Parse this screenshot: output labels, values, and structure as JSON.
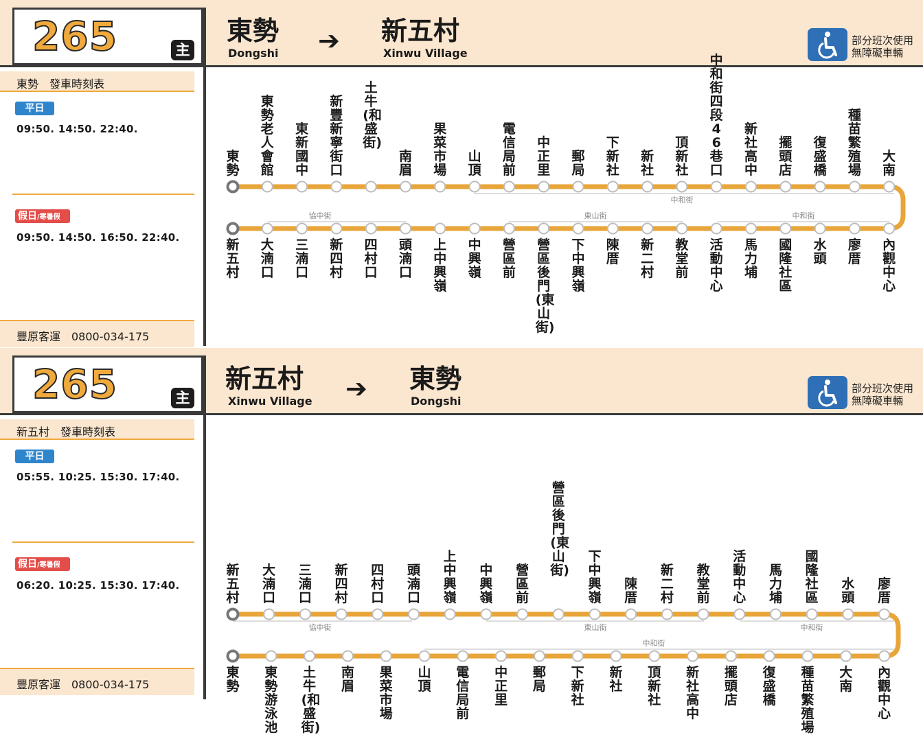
{
  "panels": [
    {
      "route_number": "265",
      "route_badge": "主",
      "from_zh": "東勢",
      "from_en": "Dongshi",
      "arrow": "➔",
      "to_zh": "新五村",
      "to_en": "Xinwu Village",
      "accessibility_line1": "部分班次使用",
      "accessibility_line2": "無障礙車輛",
      "accessibility_icon": "wheelchair-icon",
      "timetable_title": "東勢　發車時刻表",
      "weekday_label": "平日",
      "weekday_times": "09:50. 14:50.  22:40.",
      "holiday_label": "假日",
      "holiday_sub": "/寒暑假",
      "holiday_times": "09:50. 14:50. 16:50. 22:40.",
      "operator": "豐原客運　0800-034-175",
      "upper_stops": [
        "東勢",
        "東勢老人會館",
        "東新國中",
        "新豐新寧街口",
        "土牛(和盛街)",
        "南眉",
        "果菜市場",
        "山頂",
        "電信局前",
        "中正里",
        "郵局",
        "下新社",
        "新社",
        "頂新社",
        "中和街四段46巷口",
        "新社高中",
        "擺頭店",
        "復盛橋",
        "種苗繁殖場",
        "大南"
      ],
      "lower_stops": [
        "新五村",
        "大湳口",
        "三湳口",
        "新四村",
        "四村口",
        "頭湳口",
        "上中興嶺",
        "中興嶺",
        "營區前",
        "營區後門(東山街)",
        "下中興嶺",
        "陳厝",
        "新二村",
        "教堂前",
        "活動中心",
        "馬力埔",
        "國隆社區",
        "水頭",
        "廖厝",
        "內觀中心"
      ],
      "streets": {
        "upper_a": "中和街",
        "lower_a": "協中街",
        "lower_b": "東山街",
        "lower_c": "中和街"
      }
    },
    {
      "route_number": "265",
      "route_badge": "主",
      "from_zh": "新五村",
      "from_en": "Xinwu Village",
      "arrow": "➔",
      "to_zh": "東勢",
      "to_en": "Dongshi",
      "accessibility_line1": "部分班次使用",
      "accessibility_line2": "無障礙車輛",
      "accessibility_icon": "wheelchair-icon",
      "timetable_title": "新五村　發車時刻表",
      "weekday_label": "平日",
      "weekday_times": "05:55. 10:25. 15:30. 17:40.",
      "holiday_label": "假日",
      "holiday_sub": "/寒暑假",
      "holiday_times": "06:20. 10:25. 15:30. 17:40.",
      "operator": "豐原客運　0800-034-175",
      "upper_stops": [
        "新五村",
        "大湳口",
        "三湳口",
        "新四村",
        "四村口",
        "頭湳口",
        "上中興嶺",
        "中興嶺",
        "營區前",
        "營區後門(東山街)",
        "下中興嶺",
        "陳厝",
        "新二村",
        "教堂前",
        "活動中心",
        "馬力埔",
        "國隆社區",
        "水頭",
        "廖厝"
      ],
      "lower_stops": [
        "東勢",
        "東勢游泳池",
        "土牛(和盛街)",
        "南眉",
        "果菜市場",
        "山頂",
        "電信局前",
        "中正里",
        "郵局",
        "下新社",
        "新社",
        "頂新社",
        "新社高中",
        "擺頭店",
        "復盛橋",
        "種苗繁殖場",
        "大南",
        "內觀中心"
      ],
      "streets": {
        "upper_a": "協中街",
        "upper_b": "東山街",
        "upper_c": "中和街",
        "lower_a": "中和街"
      }
    }
  ],
  "colors": {
    "route_line": "#e8a53a",
    "header_band": "#fbe6cf",
    "weekday_badge": "#2e85cc",
    "holiday_badge": "#e34e4a",
    "accessibility": "#2e6fb5"
  }
}
